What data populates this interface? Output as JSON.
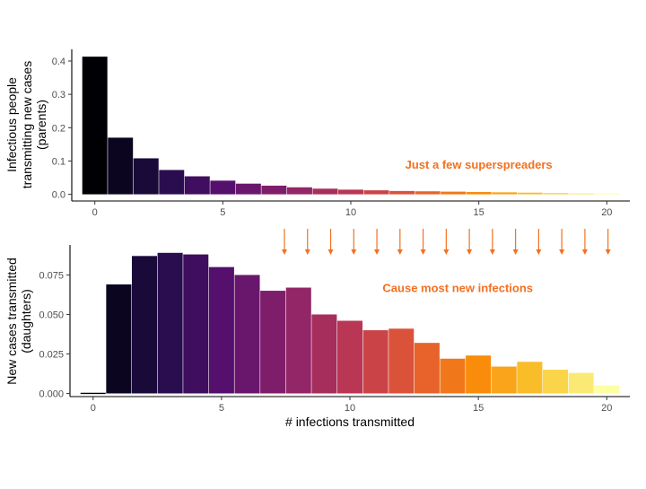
{
  "chart_data": [
    {
      "type": "bar",
      "x": [
        0,
        1,
        2,
        3,
        4,
        5,
        6,
        7,
        8,
        9,
        10,
        11,
        12,
        13,
        14,
        15,
        16,
        17,
        18,
        19,
        20
      ],
      "values": [
        0.413,
        0.17,
        0.108,
        0.073,
        0.054,
        0.041,
        0.032,
        0.026,
        0.021,
        0.017,
        0.014,
        0.012,
        0.01,
        0.009,
        0.008,
        0.007,
        0.006,
        0.005,
        0.004,
        0.003,
        0.003
      ],
      "ylabel_lines": [
        "Infectious people",
        "transmitting new cases",
        "(parents)"
      ],
      "xlabel": "",
      "xlim": [
        -0.9,
        20.9
      ],
      "ylim": [
        -0.02,
        0.435
      ],
      "xticks": [
        0,
        5,
        10,
        15,
        20
      ],
      "yticks": [
        0.0,
        0.1,
        0.2,
        0.3,
        0.4
      ],
      "ytick_labels": [
        "0.0",
        "0.1",
        "0.2",
        "0.3",
        "0.4"
      ],
      "annotation": {
        "text": "Just a few superspreaders",
        "x": 15.0,
        "y": 0.077,
        "color": "#F37021"
      },
      "color_scale": "inferno",
      "grid": false
    },
    {
      "type": "bar",
      "x": [
        0,
        1,
        2,
        3,
        4,
        5,
        6,
        7,
        8,
        9,
        10,
        11,
        12,
        13,
        14,
        15,
        16,
        17,
        18,
        19,
        20
      ],
      "values": [
        0.0,
        0.069,
        0.087,
        0.089,
        0.088,
        0.08,
        0.075,
        0.065,
        0.067,
        0.05,
        0.046,
        0.04,
        0.041,
        0.032,
        0.022,
        0.024,
        0.017,
        0.02,
        0.015,
        0.013,
        0.005
      ],
      "ylabel_lines": [
        "New cases transmitted",
        "(daughters)"
      ],
      "xlabel": "# infections transmitted",
      "xlim": [
        -0.9,
        20.9
      ],
      "ylim": [
        -0.002,
        0.094
      ],
      "xticks": [
        0,
        5,
        10,
        15,
        20
      ],
      "yticks": [
        0.0,
        0.025,
        0.05,
        0.075
      ],
      "ytick_labels": [
        "0.000",
        "0.025",
        "0.050",
        "0.075"
      ],
      "annotation": {
        "text": "Cause most new infections",
        "x": 14.2,
        "y": 0.0642,
        "color": "#F37021"
      },
      "color_scale": "inferno",
      "grid": false
    }
  ],
  "arrows": {
    "color": "#F37021",
    "x_start": [
      7.45,
      8.35,
      9.25,
      10.15,
      11.05,
      11.95,
      12.85,
      13.75,
      14.65,
      15.55,
      16.45,
      17.35,
      18.25,
      19.15,
      20.05
    ],
    "x_end": [
      7.45,
      8.35,
      9.25,
      10.15,
      11.05,
      11.95,
      12.85,
      13.75,
      14.65,
      15.55,
      16.45,
      17.35,
      18.25,
      19.15,
      20.05
    ]
  }
}
